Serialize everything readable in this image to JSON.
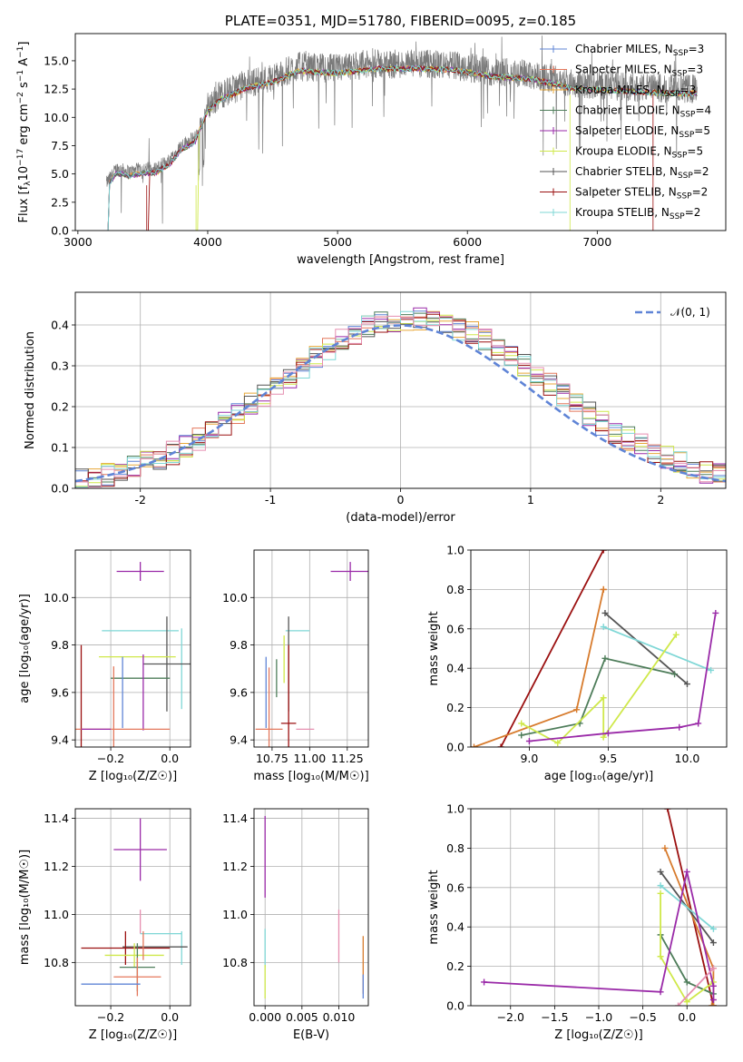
{
  "colors": {
    "Chabrier MILES": "#5f84d6",
    "Salpeter MILES": "#e4785c",
    "Kroupa MILES": "#e8a838",
    "Chabrier ELODIE": "#4e7d5a",
    "Salpeter ELODIE": "#9a2aa8",
    "Kroupa ELODIE": "#cfe84a",
    "Chabrier STELIB": "#555555",
    "Salpeter STELIB": "#9b1010",
    "Kroupa STELIB": "#7fd7d6",
    "orange_line": "#d77b2d",
    "pink": "#e68fb0",
    "normal": "#5f84d6"
  },
  "chart_data": [
    {
      "id": "spectrum",
      "type": "line",
      "title": "PLATE=0351, MJD=51780, FIBERID=0095, z=0.185",
      "xlabel": "wavelength [Angstrom, rest frame]",
      "ylabel": "Flux [f",
      "ylabel_sub": "λ",
      "ylabel_rest": "10",
      "ylabel_exp1": "−17",
      "ylabel_rest2": " erg cm",
      "ylabel_exp2": "−2",
      "ylabel_rest3": " s",
      "ylabel_exp3": "−1",
      "ylabel_rest4": " A",
      "ylabel_exp4": "−1",
      "ylabel_end": "]",
      "xlim": [
        2980,
        7990
      ],
      "ylim": [
        0,
        17.4
      ],
      "xticks": [
        3000,
        4000,
        5000,
        6000,
        7000
      ],
      "yticks": [
        0.0,
        2.5,
        5.0,
        7.5,
        10.0,
        12.5,
        15.0
      ],
      "ytick_labels": [
        "0.0",
        "2.5",
        "5.0",
        "7.5",
        "10.0",
        "12.5",
        "15.0"
      ],
      "grid": false,
      "legend": "upper right",
      "series": [
        {
          "name": "Chabrier MILES",
          "nssp": "3"
        },
        {
          "name": "Salpeter MILES",
          "nssp": "3"
        },
        {
          "name": "Kroupa MILES",
          "nssp": "3"
        },
        {
          "name": "Chabrier ELODIE",
          "nssp": "4"
        },
        {
          "name": "Salpeter ELODIE",
          "nssp": "5"
        },
        {
          "name": "Kroupa ELODIE",
          "nssp": "5"
        },
        {
          "name": "Chabrier STELIB",
          "nssp": "2"
        },
        {
          "name": "Salpeter STELIB",
          "nssp": "2"
        },
        {
          "name": "Kroupa STELIB",
          "nssp": "2"
        }
      ],
      "legend_prefix": ", N",
      "legend_sub": "SSP",
      "legend_eq": "=",
      "data_envelope": {
        "x": [
          3220,
          3300,
          3400,
          3500,
          3600,
          3700,
          3800,
          3900,
          4000,
          4100,
          4300,
          4500,
          4700,
          5000,
          5300,
          5600,
          5900,
          6200,
          6500,
          6800,
          7100,
          7400,
          7700
        ],
        "y": [
          4.2,
          5.5,
          5.2,
          5.5,
          5.5,
          6.2,
          7.6,
          8.2,
          11.0,
          12.0,
          13.0,
          13.5,
          14.5,
          14.3,
          14.7,
          14.7,
          14.6,
          14.0,
          13.8,
          13.0,
          12.8,
          12.6,
          12.5
        ]
      },
      "model_starts": {
        "Salpeter STELIB": 3530,
        "Kroupa ELODIE": 3910,
        "Kroupa STELIB": 3220
      }
    },
    {
      "id": "residuals",
      "type": "histogram",
      "xlabel": "(data-model)/error",
      "ylabel": "Normed distribution",
      "xlim": [
        -2.5,
        2.5
      ],
      "ylim": [
        0,
        0.48
      ],
      "xticks": [
        -2,
        -1,
        0,
        1,
        2
      ],
      "yticks": [
        0.0,
        0.1,
        0.2,
        0.3,
        0.4
      ],
      "ytick_labels": [
        "0.0",
        "0.1",
        "0.2",
        "0.3",
        "0.4"
      ],
      "grid": true,
      "legend": "upper right",
      "legend_label": "𝒩(0, 1)",
      "normal_curve": {
        "mean": 0,
        "sigma": 1
      }
    },
    {
      "id": "age_vs_Z",
      "type": "errorbar",
      "xlabel": "Z [log₁₀(Z/Z☉)]",
      "ylabel": "age  [log₁₀(age/yr)]",
      "xlim": [
        -0.32,
        0.07
      ],
      "ylim": [
        9.37,
        10.2
      ],
      "xticks": [
        -0.2,
        0.0
      ],
      "xtick_labels": [
        "−0.2",
        "0.0"
      ],
      "yticks": [
        9.4,
        9.6,
        9.8,
        10.0
      ],
      "ytick_labels": [
        "9.4",
        "9.6",
        "9.8",
        "10.0"
      ],
      "grid": true,
      "points": [
        {
          "series": "Salpeter ELODIE",
          "x": -0.1,
          "y": 10.11,
          "xerr": 0.08,
          "yerr": 0.04
        },
        {
          "series": "Kroupa STELIB",
          "x": -0.1,
          "y": 9.86,
          "xerr": 0.13,
          "yerr": 0.0
        },
        {
          "series": "Kroupa STELIB",
          "x": 0.04,
          "y": 9.7,
          "xerr": 0.0,
          "yerr": 0.17
        },
        {
          "series": "Chabrier STELIB",
          "x": -0.01,
          "y": 9.72,
          "xerr": 0.08,
          "yerr": 0.2
        },
        {
          "series": "Kroupa ELODIE",
          "x": -0.11,
          "y": 9.75,
          "xerr": 0.13,
          "yerr": 0.0
        },
        {
          "series": "Chabrier ELODIE",
          "x": -0.1,
          "y": 9.66,
          "xerr": 0.1,
          "yerr": 0.0
        },
        {
          "series": "Chabrier MILES",
          "x": -0.16,
          "y": 9.6,
          "xerr": 0.0,
          "yerr": 0.15
        },
        {
          "series": "Salpeter STELIB",
          "x": -0.3,
          "y": 9.47,
          "xerr": 0.0,
          "yerr": 0.33
        },
        {
          "series": "Salpeter MILES",
          "x": -0.19,
          "y": 9.45,
          "xerr": 0.0,
          "yerr": 0.26
        },
        {
          "series": "Salpeter ELODIE",
          "x": -0.09,
          "y": 9.6,
          "xerr": 0.0,
          "yerr": 0.16
        },
        {
          "series": "Salpeter MILES",
          "x": -0.16,
          "y": 9.445,
          "xerr": 0.16,
          "yerr": 0.0
        },
        {
          "series": "Salpeter ELODIE",
          "x": -0.25,
          "y": 9.445,
          "xerr": 0.05,
          "yerr": 0.0
        }
      ]
    },
    {
      "id": "age_vs_mass",
      "type": "errorbar",
      "xlabel": "mass [log₁₀(M/M☉)]",
      "xlim": [
        10.63,
        11.39
      ],
      "ylim": [
        9.37,
        10.2
      ],
      "xticks": [
        10.75,
        11.0,
        11.25
      ],
      "xtick_labels": [
        "10.75",
        "11.00",
        "11.25"
      ],
      "yticks": [
        9.4,
        9.6,
        9.8,
        10.0
      ],
      "ytick_labels": [
        "9.4",
        "9.6",
        "9.8",
        "10.0"
      ],
      "grid": true,
      "points": [
        {
          "series": "Salpeter ELODIE",
          "x": 11.27,
          "y": 10.11,
          "xerr": 0.13,
          "yerr": 0.04
        },
        {
          "series": "Kroupa STELIB",
          "x": 10.92,
          "y": 9.86,
          "xerr": 0.08,
          "yerr": 0.0
        },
        {
          "series": "Chabrier STELIB",
          "x": 10.86,
          "y": 9.72,
          "xerr": 0.0,
          "yerr": 0.2
        },
        {
          "series": "Kroupa ELODIE",
          "x": 10.83,
          "y": 9.74,
          "xerr": 0.0,
          "yerr": 0.1
        },
        {
          "series": "Chabrier ELODIE",
          "x": 10.78,
          "y": 9.66,
          "xerr": 0.0,
          "yerr": 0.08
        },
        {
          "series": "Salpeter STELIB",
          "x": 10.86,
          "y": 9.47,
          "xerr": 0.05,
          "yerr": 0.33
        },
        {
          "series": "Chabrier MILES",
          "x": 10.71,
          "y": 9.6,
          "xerr": 0.0,
          "yerr": 0.15
        },
        {
          "series": "Salpeter MILES",
          "x": 10.73,
          "y": 9.445,
          "xerr": 0.09,
          "yerr": 0.26
        },
        {
          "series": "pink",
          "x": 10.97,
          "y": 9.445,
          "xerr": 0.06,
          "yerr": 0.0
        }
      ]
    },
    {
      "id": "weight_vs_age",
      "type": "line",
      "xlabel": "age  [log₁₀(age/yr)]",
      "ylabel": "mass weight",
      "xlim": [
        8.63,
        10.25
      ],
      "ylim": [
        0,
        1.0
      ],
      "xticks": [
        9.0,
        9.5,
        10.0
      ],
      "xtick_labels": [
        "9.0",
        "9.5",
        "10.0"
      ],
      "yticks": [
        0.0,
        0.2,
        0.4,
        0.6,
        0.8,
        1.0
      ],
      "ytick_labels": [
        "0.0",
        "0.2",
        "0.4",
        "0.6",
        "0.8",
        "1.0"
      ],
      "grid": true,
      "series": [
        {
          "name": "Salpeter STELIB",
          "x": [
            8.82,
            9.47
          ],
          "y": [
            0.0,
            1.0
          ]
        },
        {
          "name": "orange_line",
          "x": [
            8.65,
            9.3,
            9.47,
            9.47
          ],
          "y": [
            0.0,
            0.19,
            0.8,
            0.8
          ]
        },
        {
          "name": "Chabrier STELIB",
          "x": [
            9.48,
            10.0
          ],
          "y": [
            0.68,
            0.32
          ]
        },
        {
          "name": "Kroupa STELIB",
          "x": [
            9.47,
            10.15
          ],
          "y": [
            0.61,
            0.39
          ]
        },
        {
          "name": "Chabrier ELODIE",
          "x": [
            8.95,
            9.32,
            9.48,
            9.92
          ],
          "y": [
            0.06,
            0.12,
            0.45,
            0.37
          ]
        },
        {
          "name": "Kroupa ELODIE",
          "x": [
            8.95,
            9.18,
            9.47,
            9.47,
            9.93
          ],
          "y": [
            0.12,
            0.02,
            0.25,
            0.05,
            0.57
          ]
        },
        {
          "name": "Salpeter ELODIE",
          "x": [
            9.0,
            9.5,
            9.95,
            10.07,
            10.18
          ],
          "y": [
            0.03,
            0.07,
            0.1,
            0.12,
            0.68
          ]
        }
      ]
    },
    {
      "id": "mass_vs_Z",
      "type": "errorbar",
      "xlabel": "Z [log₁₀(Z/Z☉)]",
      "ylabel": "mass [log₁₀(M/M☉)]",
      "xlim": [
        -0.32,
        0.07
      ],
      "ylim": [
        10.62,
        11.44
      ],
      "xticks": [
        -0.2,
        0.0
      ],
      "xtick_labels": [
        "−0.2",
        "0.0"
      ],
      "yticks": [
        10.8,
        11.0,
        11.2,
        11.4
      ],
      "ytick_labels": [
        "10.8",
        "11.0",
        "11.2",
        "11.4"
      ],
      "grid": true,
      "points": [
        {
          "series": "Salpeter ELODIE",
          "x": -0.1,
          "y": 11.27,
          "xerr": 0.09,
          "yerr": 0.13
        },
        {
          "series": "pink",
          "x": -0.1,
          "y": 10.97,
          "xerr": 0.0,
          "yerr": 0.05
        },
        {
          "series": "Kroupa STELIB",
          "x": -0.03,
          "y": 10.92,
          "xerr": 0.07,
          "yerr": 0.0
        },
        {
          "series": "Kroupa STELIB",
          "x": 0.04,
          "y": 10.86,
          "xerr": 0.0,
          "yerr": 0.07
        },
        {
          "series": "Chabrier STELIB",
          "x": -0.05,
          "y": 10.865,
          "xerr": 0.11,
          "yerr": 0.0
        },
        {
          "series": "Salpeter STELIB",
          "x": -0.15,
          "y": 10.86,
          "xerr": 0.15,
          "yerr": 0.07
        },
        {
          "series": "Kroupa ELODIE",
          "x": -0.12,
          "y": 10.83,
          "xerr": 0.1,
          "yerr": 0.05
        },
        {
          "series": "Chabrier ELODIE",
          "x": -0.11,
          "y": 10.78,
          "xerr": 0.06,
          "yerr": 0.1
        },
        {
          "series": "Salpeter MILES",
          "x": -0.11,
          "y": 10.74,
          "xerr": 0.08,
          "yerr": 0.08
        },
        {
          "series": "Chabrier MILES",
          "x": -0.2,
          "y": 10.71,
          "xerr": 0.1,
          "yerr": 0.0
        },
        {
          "series": "Salpeter MILES",
          "x": -0.09,
          "y": 10.87,
          "xerr": 0.0,
          "yerr": 0.06
        }
      ]
    },
    {
      "id": "mass_vs_ebv",
      "type": "errorbar",
      "xlabel": "E(B-V)",
      "xlim": [
        -0.0015,
        0.014
      ],
      "ylim": [
        10.62,
        11.44
      ],
      "xticks": [
        0.0,
        0.005,
        0.01
      ],
      "xtick_labels": [
        "0.000",
        "0.005",
        "0.010"
      ],
      "yticks": [
        10.8,
        11.0,
        11.2,
        11.4
      ],
      "ytick_labels": [
        "10.8",
        "11.0",
        "11.2",
        "11.4"
      ],
      "grid": true,
      "points": [
        {
          "series": "Salpeter ELODIE",
          "x": 0.0,
          "y": 11.24,
          "xerr": 0.0,
          "yerr": 0.17
        },
        {
          "series": "Kroupa STELIB",
          "x": 0.0,
          "y": 10.86,
          "xerr": 0.0,
          "yerr": 0.08
        },
        {
          "series": "Kroupa ELODIE",
          "x": 0.0,
          "y": 10.72,
          "xerr": 0.0,
          "yerr": 0.07
        },
        {
          "series": "pink",
          "x": 0.01,
          "y": 10.91,
          "xerr": 0.0,
          "yerr": 0.11
        },
        {
          "series": "orange_line",
          "x": 0.0133,
          "y": 10.79,
          "xerr": 0.0,
          "yerr": 0.12
        },
        {
          "series": "Chabrier MILES",
          "x": 0.0133,
          "y": 10.7,
          "xerr": 0.0,
          "yerr": 0.05
        }
      ]
    },
    {
      "id": "weight_vs_Z",
      "type": "line",
      "xlabel": "Z [log₁₀(Z/Z☉)]",
      "ylabel": "mass weight",
      "xlim": [
        -2.45,
        0.45
      ],
      "ylim": [
        0,
        1.0
      ],
      "xticks": [
        -2.0,
        -1.5,
        -1.0,
        -0.5,
        0.0
      ],
      "xtick_labels": [
        "−2.0",
        "−1.5",
        "−1.0",
        "−0.5",
        "0.0"
      ],
      "yticks": [
        0.0,
        0.2,
        0.4,
        0.6,
        0.8,
        1.0
      ],
      "ytick_labels": [
        "0.0",
        "0.2",
        "0.4",
        "0.6",
        "0.8",
        "1.0"
      ],
      "grid": true,
      "series": [
        {
          "name": "Salpeter STELIB",
          "x": [
            -0.22,
            0.3
          ],
          "y": [
            1.0,
            0.0
          ]
        },
        {
          "name": "orange_line",
          "x": [
            -0.25,
            0.3,
            0.3,
            0.28
          ],
          "y": [
            0.8,
            0.19,
            0.0,
            0.0
          ]
        },
        {
          "name": "Chabrier STELIB",
          "x": [
            -0.3,
            0.3
          ],
          "y": [
            0.68,
            0.32
          ]
        },
        {
          "name": "Kroupa STELIB",
          "x": [
            -0.3,
            0.3
          ],
          "y": [
            0.61,
            0.39
          ]
        },
        {
          "name": "Chabrier ELODIE",
          "x": [
            -0.3,
            0.0,
            0.3
          ],
          "y": [
            0.36,
            0.12,
            0.06
          ]
        },
        {
          "name": "Kroupa ELODIE",
          "x": [
            -0.3,
            -0.3,
            0.0,
            0.3
          ],
          "y": [
            0.57,
            0.25,
            0.02,
            0.12
          ]
        },
        {
          "name": "Salpeter ELODIE",
          "x": [
            -2.3,
            -0.3,
            0.0,
            0.3,
            0.3
          ],
          "y": [
            0.12,
            0.07,
            0.68,
            0.1,
            0.03
          ]
        },
        {
          "name": "pink",
          "x": [
            -0.1,
            0.3
          ],
          "y": [
            0.0,
            0.19
          ]
        }
      ]
    }
  ]
}
